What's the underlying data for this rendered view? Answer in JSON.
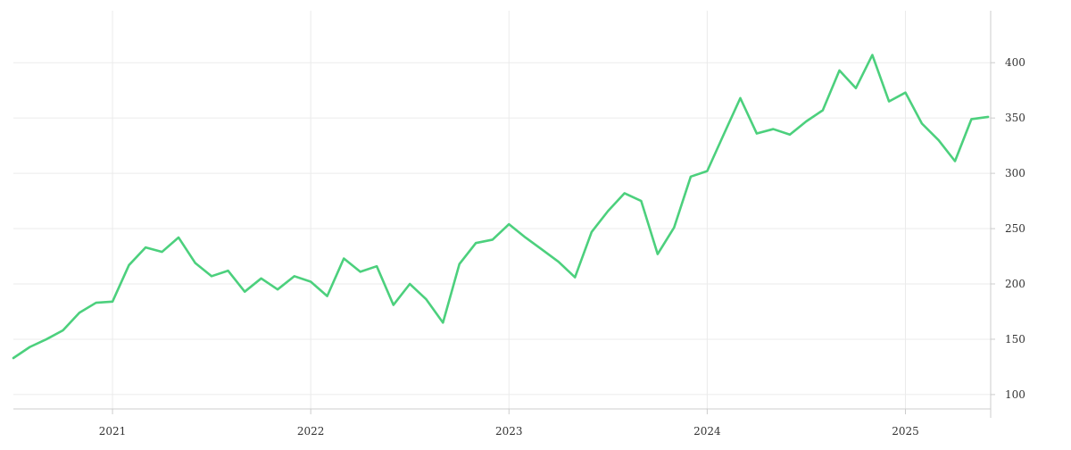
{
  "colors": {
    "series": "#4cd07d",
    "grid": "#ebebeb",
    "axis": "#cccccc",
    "text": "#333333",
    "background": "#ffffff"
  },
  "chart_data": {
    "type": "line",
    "title": "",
    "xlabel": "",
    "ylabel": "",
    "grid": true,
    "legend": "none",
    "y_axis_side": "right",
    "x_tick_labels": [
      "2021",
      "2022",
      "2023",
      "2024",
      "2025"
    ],
    "x_ticks": [
      2021.0,
      2022.0,
      2023.0,
      2024.0,
      2025.0
    ],
    "y_tick_labels": [
      "100",
      "150",
      "200",
      "250",
      "300",
      "350",
      "400"
    ],
    "y_ticks": [
      100,
      150,
      200,
      250,
      300,
      350,
      400
    ],
    "xlim": [
      2020.5,
      2025.43
    ],
    "ylim": [
      87,
      447
    ],
    "series": [
      {
        "x": [
          2020.5,
          2020.583,
          2020.667,
          2020.75,
          2020.833,
          2020.917,
          2021.0,
          2021.083,
          2021.167,
          2021.25,
          2021.333,
          2021.417,
          2021.5,
          2021.583,
          2021.667,
          2021.75,
          2021.833,
          2021.917,
          2022.0,
          2022.083,
          2022.167,
          2022.25,
          2022.333,
          2022.417,
          2022.5,
          2022.583,
          2022.667,
          2022.75,
          2022.833,
          2022.917,
          2023.0,
          2023.083,
          2023.167,
          2023.25,
          2023.333,
          2023.417,
          2023.5,
          2023.583,
          2023.667,
          2023.75,
          2023.833,
          2023.917,
          2024.0,
          2024.083,
          2024.167,
          2024.25,
          2024.333,
          2024.417,
          2024.5,
          2024.583,
          2024.667,
          2024.75,
          2024.833,
          2024.917,
          2025.0,
          2025.083,
          2025.167,
          2025.25,
          2025.333,
          2025.417
        ],
        "values": [
          133,
          143,
          150,
          158,
          174,
          183,
          184,
          217,
          233,
          229,
          242,
          219,
          207,
          212,
          193,
          205,
          195,
          207,
          202,
          189,
          223,
          211,
          216,
          181,
          200,
          186,
          165,
          218,
          237,
          240,
          254,
          242,
          231,
          220,
          206,
          247,
          266,
          282,
          275,
          227,
          251,
          297,
          302,
          335,
          368,
          336,
          340,
          335,
          347,
          357,
          393,
          377,
          407,
          365,
          373,
          345,
          330,
          311,
          349,
          351
        ]
      }
    ]
  }
}
